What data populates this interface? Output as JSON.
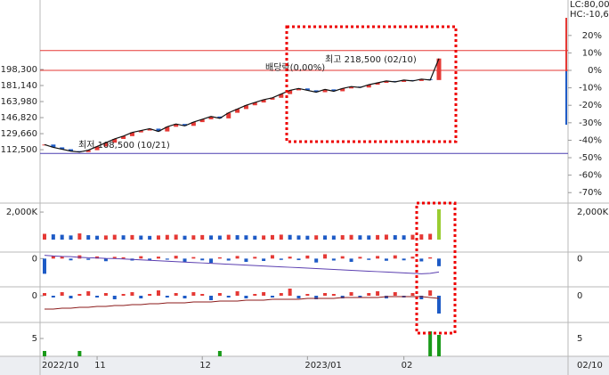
{
  "chart_data": [
    {
      "type": "candlestick",
      "pane": "price",
      "categories": [
        "2022/10",
        null,
        null,
        null,
        null,
        null,
        "11",
        null,
        null,
        null,
        null,
        null,
        null,
        null,
        null,
        null,
        null,
        null,
        "12",
        null,
        null,
        null,
        null,
        null,
        null,
        null,
        null,
        null,
        null,
        null,
        "2023/01",
        null,
        null,
        null,
        null,
        null,
        null,
        null,
        null,
        null,
        null,
        "02",
        null,
        null,
        null,
        null
      ],
      "values": [
        118000,
        115000,
        113000,
        111000,
        110000,
        112000,
        116000,
        120000,
        124000,
        127000,
        131000,
        133000,
        135000,
        132000,
        137000,
        140000,
        138000,
        142000,
        145000,
        148000,
        146000,
        152000,
        156000,
        160000,
        163000,
        166000,
        168000,
        172000,
        176000,
        178000,
        176000,
        174000,
        177000,
        175000,
        178000,
        180000,
        179000,
        182000,
        184000,
        186000,
        185000,
        187000,
        186000,
        188000,
        187000,
        210000
      ],
      "up_color": "#e53935",
      "down_color": "#1e5bc6",
      "ylim": [
        55400,
        272600
      ],
      "yticks": [
        {
          "value": 198300,
          "label": "198,300"
        },
        {
          "value": 181140,
          "label": "181,140"
        },
        {
          "value": 163980,
          "label": "163,980"
        },
        {
          "value": 146820,
          "label": "146,820"
        },
        {
          "value": 129660,
          "label": "129,660"
        },
        {
          "value": 112500,
          "label": "112,500"
        }
      ],
      "y2lim": [
        -76,
        40.3
      ],
      "y2ticks": [
        {
          "value": 20,
          "label": "20%"
        },
        {
          "value": 10,
          "label": "10%"
        },
        {
          "value": 0,
          "label": "0%"
        },
        {
          "value": -10,
          "label": "-10%"
        },
        {
          "value": -20,
          "label": "-20%"
        },
        {
          "value": -30,
          "label": "-30%"
        },
        {
          "value": -40,
          "label": "-40%"
        },
        {
          "value": -50,
          "label": "-50%"
        },
        {
          "value": -60,
          "label": "-60%"
        },
        {
          "value": -70,
          "label": "-70%"
        }
      ],
      "reference_lines": [
        {
          "value": 218500,
          "color": "#e53935"
        },
        {
          "value": 108500,
          "color": "#4a3fb0"
        }
      ],
      "annotations": [
        "최고 218,500 (02/10)",
        "최저 108,500 (10/21)",
        "배당락(0,00%)"
      ],
      "corner_labels": [
        "LC:80,00",
        "HC:-10,6"
      ],
      "last_date": "02/10"
    },
    {
      "type": "bar",
      "pane": "volume",
      "values": [
        420000,
        380000,
        350000,
        300000,
        450000,
        320000,
        280000,
        300000,
        350000,
        310000,
        330000,
        290000,
        270000,
        300000,
        340000,
        360000,
        280000,
        310000,
        330000,
        300000,
        290000,
        350000,
        320000,
        310000,
        280000,
        300000,
        330000,
        360000,
        340000,
        300000,
        280000,
        310000,
        300000,
        290000,
        320000,
        340000,
        310000,
        300000,
        330000,
        360000,
        320000,
        310000,
        350000,
        380000,
        420000,
        2200000
      ],
      "ylim": [
        0,
        2650000
      ],
      "yticks": [
        {
          "value": 2000000,
          "label": "2,000K"
        }
      ]
    },
    {
      "type": "bar",
      "pane": "oscillator",
      "values": [
        -700,
        120,
        90,
        -80,
        150,
        -60,
        100,
        -120,
        80,
        60,
        -90,
        110,
        -70,
        90,
        -50,
        130,
        -160,
        70,
        -80,
        -200,
        60,
        -90,
        120,
        -150,
        80,
        -110,
        160,
        -60,
        90,
        -70,
        140,
        -180,
        200,
        -90,
        110,
        -150,
        80,
        -60,
        120,
        -100,
        150,
        -80,
        90,
        -130,
        60,
        -350
      ],
      "line_values": [
        150,
        120,
        100,
        90,
        60,
        40,
        30,
        10,
        0,
        -20,
        -40,
        -60,
        -80,
        -100,
        -120,
        -140,
        -160,
        -180,
        -200,
        -220,
        -240,
        -260,
        -280,
        -300,
        -320,
        -340,
        -360,
        -380,
        -400,
        -420,
        -440,
        -460,
        -480,
        -500,
        -520,
        -540,
        -560,
        -580,
        -600,
        -620,
        -640,
        -660,
        -680,
        -700,
        -680,
        -620
      ],
      "line_color": "#5b3fb0",
      "ylim": [
        -1300,
        300
      ],
      "yticks": [
        0
      ]
    },
    {
      "type": "bar",
      "pane": "oscillator",
      "values": [
        3,
        -2,
        4,
        -3,
        2,
        5,
        -2,
        3,
        -4,
        2,
        4,
        -3,
        2,
        6,
        -2,
        3,
        -3,
        4,
        2,
        -5,
        3,
        -2,
        5,
        -3,
        2,
        4,
        -2,
        3,
        8,
        -3,
        2,
        -4,
        3,
        2,
        -3,
        4,
        -2,
        3,
        5,
        -3,
        4,
        -2,
        3,
        -4,
        6,
        -20
      ],
      "line_values": [
        -15,
        -15,
        -14,
        -14,
        -13,
        -13,
        -12,
        -12,
        -11,
        -11,
        -10,
        -10,
        -9,
        -9,
        -8,
        -8,
        -8,
        -7,
        -7,
        -7,
        -6,
        -6,
        -6,
        -5,
        -5,
        -5,
        -4,
        -4,
        -4,
        -4,
        -3,
        -3,
        -3,
        -3,
        -2,
        -2,
        -2,
        -2,
        -2,
        -1,
        -1,
        -1,
        -1,
        -1,
        -2,
        -3
      ],
      "line_color": "#8b1a1a",
      "ylim": [
        -30,
        10
      ],
      "yticks": [
        0
      ]
    },
    {
      "type": "bar",
      "pane": "count",
      "values": [
        1.5,
        0,
        0,
        0,
        1.5,
        0,
        0,
        0,
        0,
        0,
        0,
        0,
        0,
        0,
        0,
        0,
        0,
        0,
        0,
        0,
        1.5,
        0,
        0,
        0,
        0,
        0,
        0,
        0,
        0,
        0,
        0,
        0,
        0,
        0,
        0,
        0,
        0,
        0,
        0,
        0,
        0,
        0,
        0,
        0,
        7,
        6
      ],
      "color": "#1a9a1a",
      "ylim": [
        0,
        9.5
      ],
      "yticks": [
        5
      ]
    }
  ]
}
